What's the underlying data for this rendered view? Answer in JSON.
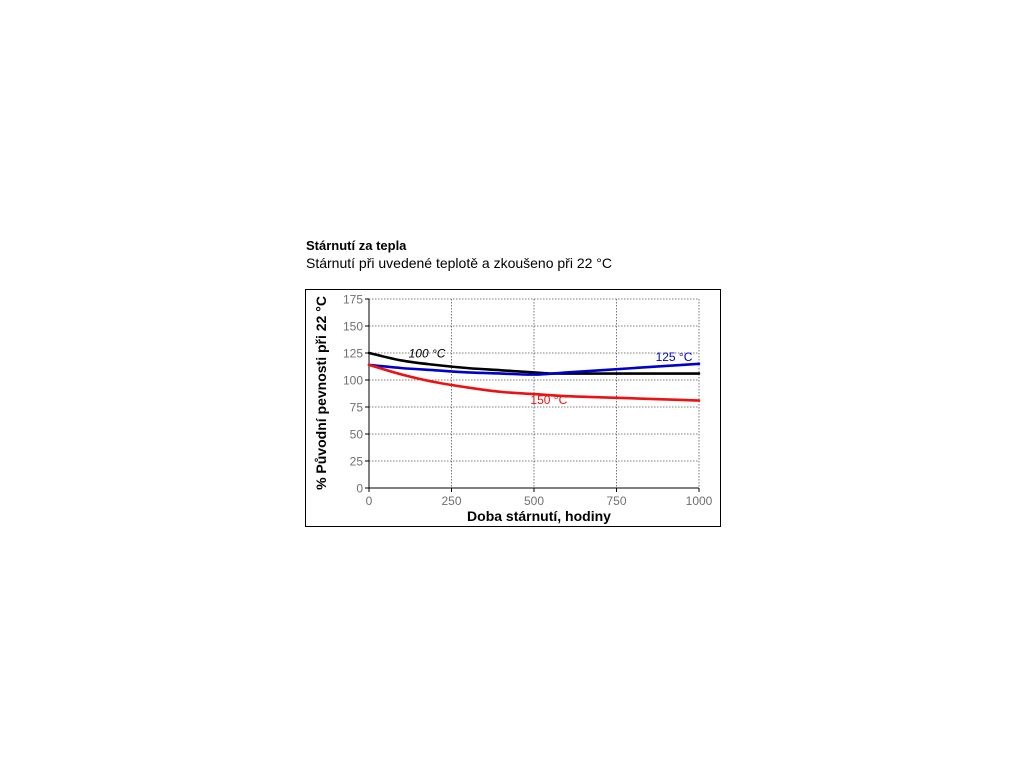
{
  "chart_data": {
    "type": "line",
    "title": "Stárnutí za tepla",
    "subtitle": "Stárnutí při uvedené teplotě a zkoušeno při 22 °C",
    "xlabel": "Doba stárnutí, hodiny",
    "ylabel": "% Původní pevnosti při 22 °C",
    "xlim": [
      0,
      1000
    ],
    "ylim": [
      0,
      175
    ],
    "xticks": [
      0,
      250,
      500,
      750,
      1000
    ],
    "yticks": [
      0,
      25,
      50,
      75,
      100,
      125,
      150,
      175
    ],
    "grid": true,
    "series": [
      {
        "name": "100 °C",
        "color": "#000000",
        "x": [
          0,
          100,
          200,
          300,
          400,
          500,
          550,
          600,
          700,
          800,
          900,
          1000
        ],
        "y": [
          125,
          118,
          114,
          111,
          109,
          107,
          106,
          106,
          106,
          106,
          106,
          106
        ]
      },
      {
        "name": "125 °C",
        "color": "#0000cc",
        "x": [
          0,
          100,
          200,
          300,
          400,
          500,
          600,
          700,
          800,
          900,
          1000
        ],
        "y": [
          114,
          111,
          109,
          107,
          106,
          105,
          107,
          109,
          111,
          113,
          115
        ]
      },
      {
        "name": "150 °C",
        "color": "#ee1111",
        "x": [
          0,
          100,
          200,
          300,
          400,
          500,
          600,
          700,
          800,
          900,
          1000
        ],
        "y": [
          114,
          105,
          98,
          93,
          89,
          87,
          85,
          84,
          83,
          82,
          81
        ]
      }
    ]
  }
}
